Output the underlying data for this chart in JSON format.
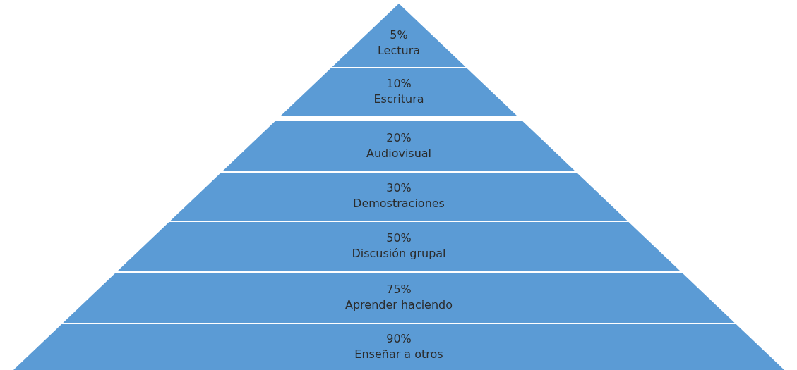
{
  "chart_data": {
    "type": "other",
    "categories": [
      "Lectura",
      "Escritura",
      "Audiovisual",
      "Demostraciones",
      "Discusión grupal",
      "Aprender haciendo",
      "Enseñar a otros"
    ],
    "values": [
      5,
      10,
      20,
      30,
      50,
      75,
      90
    ],
    "value_labels": [
      "5%",
      "10%",
      "20%",
      "30%",
      "50%",
      "75%",
      "90%"
    ],
    "color": "#5b9bd5"
  }
}
